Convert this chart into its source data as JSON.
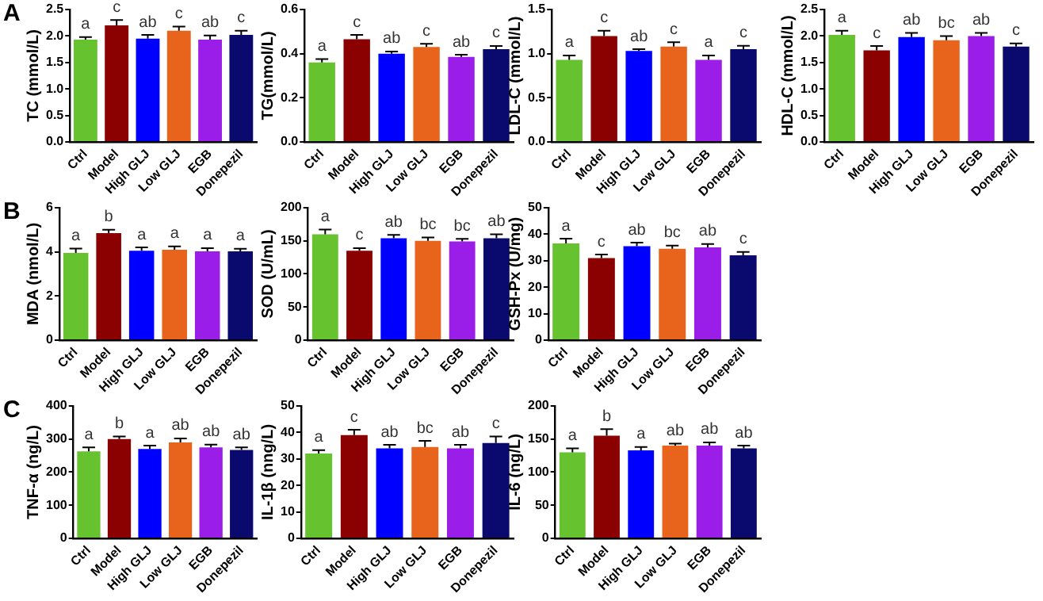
{
  "chart_data": [
    {
      "type": "bar",
      "title": "A",
      "ylabel": "TC (mmol/L)",
      "categories": [
        "Ctrl",
        "Model",
        "High GLJ",
        "Low GLJ",
        "EGB",
        "Donepezil"
      ],
      "values": [
        1.93,
        2.2,
        1.95,
        2.1,
        1.93,
        2.02
      ],
      "errors": [
        0.05,
        0.1,
        0.07,
        0.08,
        0.08,
        0.08
      ],
      "value_labels": [
        "a",
        "c",
        "ab",
        "c",
        "ab",
        "c"
      ],
      "colors": [
        "#66c22e",
        "#8b0000",
        "#0000ff",
        "#e8641c",
        "#9a1ee8",
        "#0a0a6e"
      ],
      "ylim": [
        0,
        2.5
      ],
      "yticks": [
        {
          "value": 0,
          "label": "0.0"
        },
        {
          "value": 0.5,
          "label": "0.5"
        },
        {
          "value": 1,
          "label": "1.0"
        },
        {
          "value": 1.5,
          "label": "1.5"
        },
        {
          "value": 2,
          "label": "2.0"
        },
        {
          "value": 2.5,
          "label": "2.5"
        }
      ],
      "grid": false,
      "legend": false
    },
    {
      "type": "bar",
      "ylabel": "TG(mmol/L)",
      "categories": [
        "Ctrl",
        "Model",
        "High GLJ",
        "Low GLJ",
        "EGB",
        "Donepezil"
      ],
      "values": [
        0.36,
        0.465,
        0.4,
        0.43,
        0.385,
        0.42
      ],
      "errors": [
        0.015,
        0.02,
        0.01,
        0.015,
        0.01,
        0.015
      ],
      "value_labels": [
        "a",
        "c",
        "ab",
        "c",
        "ab",
        "c"
      ],
      "colors": [
        "#66c22e",
        "#8b0000",
        "#0000ff",
        "#e8641c",
        "#9a1ee8",
        "#0a0a6e"
      ],
      "ylim": [
        0,
        0.6
      ],
      "yticks": [
        {
          "value": 0,
          "label": "0.0"
        },
        0.2,
        0.4,
        0.6
      ],
      "grid": false,
      "legend": false
    },
    {
      "type": "bar",
      "ylabel": "LDL-C (mmol/L)",
      "categories": [
        "Ctrl",
        "Model",
        "High GLJ",
        "Low GLJ",
        "EGB",
        "Donepezil"
      ],
      "values": [
        0.93,
        1.2,
        1.03,
        1.08,
        0.93,
        1.05
      ],
      "errors": [
        0.05,
        0.06,
        0.02,
        0.05,
        0.05,
        0.04
      ],
      "value_labels": [
        "a",
        "c",
        "ab",
        "c",
        "a",
        "c"
      ],
      "colors": [
        "#66c22e",
        "#8b0000",
        "#0000ff",
        "#e8641c",
        "#9a1ee8",
        "#0a0a6e"
      ],
      "ylim": [
        0,
        1.5
      ],
      "yticks": [
        {
          "value": 0,
          "label": "0.0"
        },
        0.5,
        {
          "value": 1,
          "label": "1.0"
        },
        1.5
      ],
      "grid": false,
      "legend": false
    },
    {
      "type": "bar",
      "ylabel": "HDL-C (mmol/L)",
      "categories": [
        "Ctrl",
        "Model",
        "High GLJ",
        "Low GLJ",
        "EGB",
        "Donepezil"
      ],
      "values": [
        2.02,
        1.73,
        1.98,
        1.92,
        2.0,
        1.8
      ],
      "errors": [
        0.08,
        0.08,
        0.08,
        0.08,
        0.06,
        0.06
      ],
      "value_labels": [
        "a",
        "c",
        "ab",
        "bc",
        "ab",
        "c"
      ],
      "colors": [
        "#66c22e",
        "#8b0000",
        "#0000ff",
        "#e8641c",
        "#9a1ee8",
        "#0a0a6e"
      ],
      "ylim": [
        0,
        2.5
      ],
      "yticks": [
        {
          "value": 0,
          "label": "0.0"
        },
        0.5,
        {
          "value": 1,
          "label": "1.0"
        },
        1.5,
        {
          "value": 2,
          "label": "2.0"
        },
        2.5
      ],
      "grid": false,
      "legend": false
    },
    {
      "type": "bar",
      "title": "B",
      "ylabel": "MDA (nmol/L)",
      "categories": [
        "Ctrl",
        "Model",
        "High GLJ",
        "Low GLJ",
        "EGB",
        "Donepezil"
      ],
      "values": [
        3.95,
        4.85,
        4.05,
        4.1,
        4.02,
        4.02
      ],
      "errors": [
        0.2,
        0.15,
        0.15,
        0.15,
        0.15,
        0.12
      ],
      "value_labels": [
        "a",
        "b",
        "a",
        "a",
        "a",
        "a"
      ],
      "colors": [
        "#66c22e",
        "#8b0000",
        "#0000ff",
        "#e8641c",
        "#9a1ee8",
        "#0a0a6e"
      ],
      "ylim": [
        0,
        6
      ],
      "yticks": [
        0,
        2,
        4,
        6
      ],
      "grid": false,
      "legend": false
    },
    {
      "type": "bar",
      "ylabel": "SOD (U/mL)",
      "categories": [
        "Ctrl",
        "Model",
        "High GLJ",
        "Low GLJ",
        "EGB",
        "Donepezil"
      ],
      "values": [
        160,
        135,
        154,
        150,
        149,
        154
      ],
      "errors": [
        7,
        4,
        5,
        5,
        4,
        6
      ],
      "value_labels": [
        "a",
        "c",
        "ab",
        "bc",
        "bc",
        "ab"
      ],
      "colors": [
        "#66c22e",
        "#8b0000",
        "#0000ff",
        "#e8641c",
        "#9a1ee8",
        "#0a0a6e"
      ],
      "ylim": [
        0,
        200
      ],
      "yticks": [
        0,
        50,
        100,
        150,
        200
      ],
      "grid": false,
      "legend": false
    },
    {
      "type": "bar",
      "ylabel": "GSH-Px (U/mg)",
      "categories": [
        "Ctrl",
        "Model",
        "High GLJ",
        "Low GLJ",
        "EGB",
        "Donepezil"
      ],
      "values": [
        36.5,
        31,
        35.5,
        34.5,
        35,
        32
      ],
      "errors": [
        1.8,
        1.3,
        1.3,
        1.2,
        1.3,
        1.3
      ],
      "value_labels": [
        "a",
        "c",
        "ab",
        "bc",
        "ab",
        "c"
      ],
      "colors": [
        "#66c22e",
        "#8b0000",
        "#0000ff",
        "#e8641c",
        "#9a1ee8",
        "#0a0a6e"
      ],
      "ylim": [
        0,
        50
      ],
      "yticks": [
        0,
        10,
        20,
        30,
        40,
        50
      ],
      "grid": false,
      "legend": false
    },
    {
      "type": "bar",
      "title": "C",
      "ylabel": "TNF-α (ng/L)",
      "categories": [
        "Ctrl",
        "Model",
        "High GLJ",
        "Low GLJ",
        "EGB",
        "Donepezil"
      ],
      "values": [
        263,
        300,
        270,
        290,
        275,
        267
      ],
      "errors": [
        12,
        8,
        10,
        12,
        8,
        8
      ],
      "value_labels": [
        "a",
        "b",
        "a",
        "ab",
        "ab",
        "ab"
      ],
      "colors": [
        "#66c22e",
        "#8b0000",
        "#0000ff",
        "#e8641c",
        "#9a1ee8",
        "#0a0a6e"
      ],
      "ylim": [
        0,
        400
      ],
      "yticks": [
        0,
        100,
        200,
        300,
        400
      ],
      "grid": false,
      "legend": false
    },
    {
      "type": "bar",
      "ylabel": "IL-1β (nng/L)",
      "categories": [
        "Ctrl",
        "Model",
        "High GLJ",
        "Low GLJ",
        "EGB",
        "Donepezil"
      ],
      "values": [
        32,
        39,
        34,
        34.5,
        34,
        36
      ],
      "errors": [
        1.3,
        2,
        1.3,
        2.3,
        1.3,
        2.5
      ],
      "value_labels": [
        "a",
        "c",
        "ab",
        "bc",
        "ab",
        "c"
      ],
      "colors": [
        "#66c22e",
        "#8b0000",
        "#0000ff",
        "#e8641c",
        "#9a1ee8",
        "#0a0a6e"
      ],
      "ylim": [
        0,
        50
      ],
      "yticks": [
        0,
        10,
        20,
        30,
        40,
        50
      ],
      "grid": false,
      "legend": false
    },
    {
      "type": "bar",
      "ylabel": "IL-6 (ng/L)",
      "categories": [
        "Ctrl",
        "Model",
        "High GLJ",
        "Low GLJ",
        "EGB",
        "Donepezil"
      ],
      "values": [
        130,
        155,
        133,
        140,
        140,
        136
      ],
      "errors": [
        6,
        10,
        5,
        3,
        5,
        4
      ],
      "value_labels": [
        "a",
        "b",
        "a",
        "ab",
        "ab",
        "ab"
      ],
      "colors": [
        "#66c22e",
        "#8b0000",
        "#0000ff",
        "#e8641c",
        "#9a1ee8",
        "#0a0a6e"
      ],
      "ylim": [
        0,
        200
      ],
      "yticks": [
        0,
        50,
        100,
        150,
        200
      ],
      "grid": false,
      "legend": false
    }
  ]
}
